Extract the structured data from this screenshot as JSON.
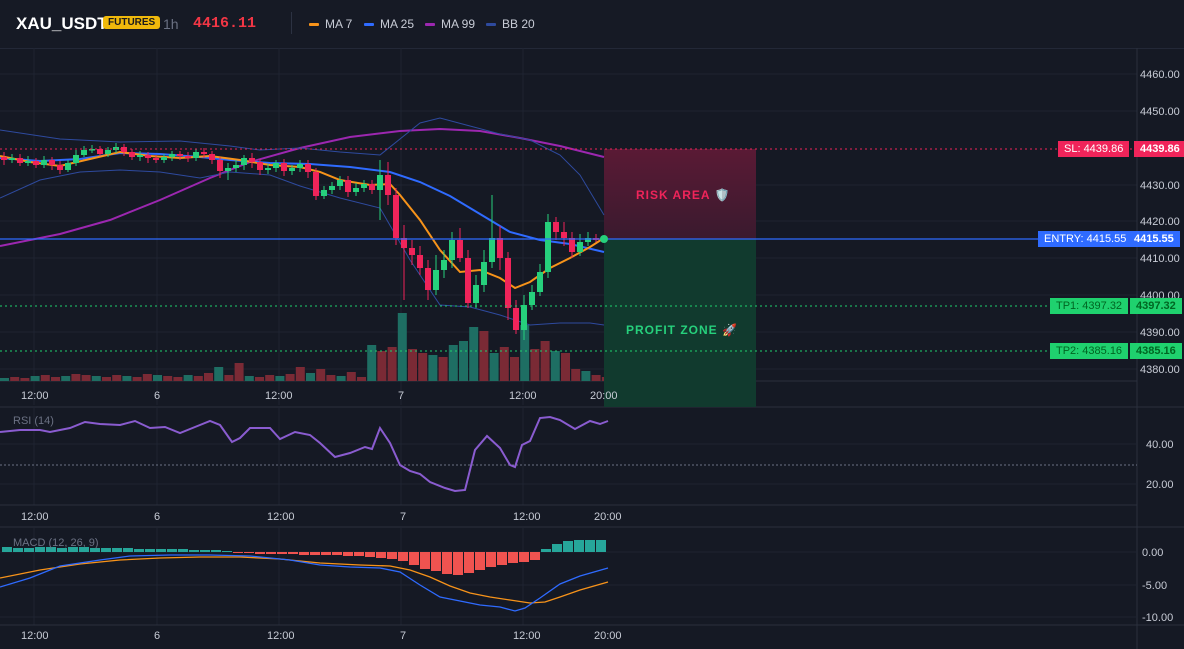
{
  "header": {
    "symbol": "XAU_USDT",
    "badge": "FUTURES",
    "timeframe": "1h",
    "price": "4416.11",
    "legend": [
      {
        "label": "MA 7",
        "color": "#f7931a"
      },
      {
        "label": "MA 25",
        "color": "#2f6bff"
      },
      {
        "label": "MA 99",
        "color": "#9c27b0"
      },
      {
        "label": "BB 20",
        "color": "#2e4a9e"
      }
    ]
  },
  "main_chart": {
    "price_axis": [
      "4460.00",
      "4450.00",
      "4440.00",
      "4430.00",
      "4420.00",
      "4410.00",
      "4400.00",
      "4390.00",
      "4380.00"
    ],
    "time_axis": [
      "12:00",
      "6",
      "12:00",
      "7",
      "12:00",
      "20:00"
    ],
    "levels": {
      "sl": "SL: 4439.86",
      "sl_value": "4439.86",
      "entry": "ENTRY: 4415.55",
      "entry_value": "4415.55",
      "tp1": "TP1: 4397.32",
      "tp1_value": "4397.32",
      "tp2": "TP2: 4385.16",
      "tp2_value": "4385.16"
    },
    "risk_label": "RISK AREA 🛡️",
    "profit_label": "PROFIT ZONE 🚀"
  },
  "rsi_panel": {
    "title": "RSI (14)",
    "axis": [
      "40.00",
      "20.00"
    ],
    "time_axis": [
      "12:00",
      "6",
      "12:00",
      "7",
      "12:00",
      "20:00"
    ]
  },
  "macd_panel": {
    "title": "MACD (12, 26, 9)",
    "axis": [
      "0.00",
      "-5.00",
      "-10.00"
    ],
    "time_axis": [
      "12:00",
      "6",
      "12:00",
      "7",
      "12:00",
      "20:00"
    ]
  },
  "colors": {
    "up": "#26d07c",
    "down": "#f0245a",
    "sl": "#f0245a",
    "entry": "#2f6bff",
    "tp": "#1fd16e",
    "rsi": "#8a5cd0",
    "macd_line": "#2f6bff",
    "signal_line": "#f7931a"
  }
}
